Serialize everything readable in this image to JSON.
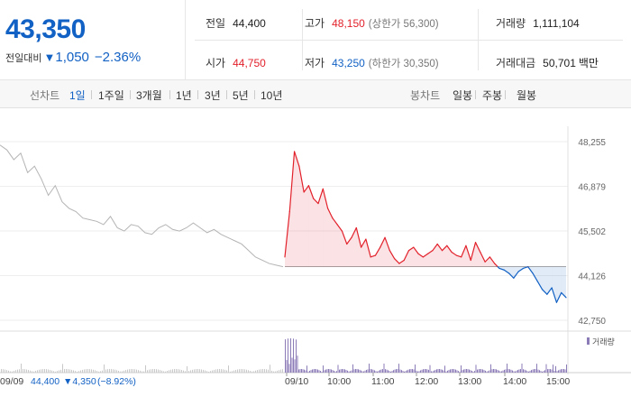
{
  "price": {
    "current": "43,350",
    "change_label": "전일대비",
    "change_value": "1,050",
    "change_pct": "−2.36%"
  },
  "stats": {
    "prev_label": "전일",
    "prev_value": "44,400",
    "high_label": "고가",
    "high_value": "48,150",
    "upper_limit": "(상한가 56,300)",
    "volume_label": "거래량",
    "volume_value": "1,111,104",
    "open_label": "시가",
    "open_value": "44,750",
    "low_label": "저가",
    "low_value": "43,250",
    "lower_limit": "(하한가 30,350)",
    "amount_label": "거래대금",
    "amount_value": "50,701",
    "amount_unit": "백만"
  },
  "tabs": {
    "line_label": "선차트",
    "line_items": [
      "1일",
      "1주일",
      "3개월",
      "1년",
      "3년",
      "5년",
      "10년"
    ],
    "candle_label": "봉차트",
    "candle_items": [
      "일봉",
      "주봉",
      "월봉"
    ]
  },
  "colors": {
    "up": "#e2212b",
    "down": "#1261c4",
    "prev_day": "#b4b4b4",
    "volume": "#8b7bb7"
  },
  "chart_data": {
    "type": "line",
    "y_ticks": [
      "48,255",
      "46,879",
      "45,502",
      "44,126",
      "42,750"
    ],
    "ylim": [
      42750,
      48255
    ],
    "baseline": 44400,
    "x_labels": [
      "09/09",
      "09/10",
      "10:00",
      "11:00",
      "12:00",
      "13:00",
      "14:00",
      "15:00"
    ],
    "prev_day_summary": {
      "date": "09/09",
      "close": "44,400",
      "change": "▼4,350",
      "pct": "(−8.92%)"
    },
    "volume_legend": "거래량",
    "prev_day_series": [
      48150,
      48000,
      47700,
      47900,
      47300,
      47500,
      47100,
      46600,
      46900,
      46400,
      46200,
      46100,
      45900,
      45850,
      45800,
      45700,
      45950,
      45600,
      45500,
      45700,
      45650,
      45450,
      45400,
      45600,
      45700,
      45550,
      45500,
      45600,
      45750,
      45600,
      45450,
      45550,
      45400,
      45300,
      45200,
      45100,
      44900,
      44700,
      44600,
      44500,
      44450,
      44400
    ],
    "today_series": [
      44700,
      46100,
      47950,
      47500,
      46700,
      46900,
      46500,
      46350,
      46800,
      46200,
      45900,
      45700,
      45500,
      45100,
      45300,
      45600,
      45000,
      45250,
      44700,
      44750,
      45000,
      45300,
      44900,
      44650,
      44500,
      44600,
      44900,
      45000,
      44800,
      44700,
      44800,
      44900,
      45100,
      44900,
      45050,
      44850,
      44750,
      44700,
      45050,
      44600,
      45150,
      44850,
      44550,
      44700,
      44500,
      44350,
      44300,
      44200,
      44050,
      44250,
      44350,
      44400,
      44200,
      43950,
      43700,
      43550,
      43750,
      43300,
      43600,
      43450
    ]
  }
}
